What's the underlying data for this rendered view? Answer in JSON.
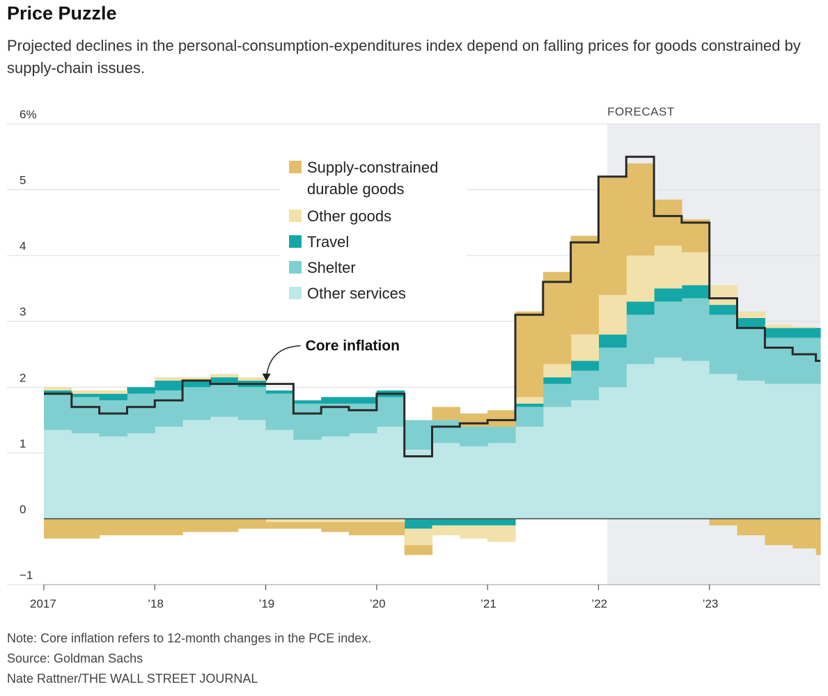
{
  "title": "Price Puzzle",
  "subtitle": "Projected declines in the personal-consumption-expenditures index depend on falling prices for goods constrained by supply-chain issues.",
  "notes": {
    "note": "Note: Core inflation refers to 12-month changes in the PCE index.",
    "source": "Source: Goldman Sachs",
    "credit": "Nate Rattner/THE WALL STREET JOURNAL"
  },
  "colors": {
    "supply": "#e2be6a",
    "other_goods": "#f2e1aa",
    "travel": "#15a7a7",
    "shelter": "#7fcfd0",
    "other_services": "#bee7e7",
    "core_line": "#2a2a2a",
    "forecast_bg": "#ecedf0"
  },
  "chart_data": {
    "type": "area",
    "stacked": true,
    "step": true,
    "title": "",
    "xlabel": "",
    "ylabel": "",
    "ylim": [
      -1,
      6
    ],
    "xlim": [
      2017,
      2024
    ],
    "y_ticks": [
      -1,
      0,
      1,
      2,
      3,
      4,
      5,
      6
    ],
    "y_tick_labels": [
      "−1",
      "0",
      "1",
      "2",
      "3",
      "4",
      "5",
      "6%"
    ],
    "x_ticks": [
      2017,
      2018,
      2019,
      2020,
      2021,
      2022,
      2023
    ],
    "x_tick_labels": [
      "2017",
      "’18",
      "’19",
      "’20",
      "’21",
      "’22",
      "’23"
    ],
    "forecast": {
      "label": "FORECAST",
      "start": 2022.08,
      "end": 2024
    },
    "annotation": {
      "text": "Core inflation",
      "x": 2019.0,
      "y": 2.08
    },
    "legend_position": "top-center",
    "x": [
      2017.0,
      2017.25,
      2017.5,
      2017.75,
      2018.0,
      2018.25,
      2018.5,
      2018.75,
      2019.0,
      2019.25,
      2019.5,
      2019.75,
      2020.0,
      2020.25,
      2020.5,
      2020.75,
      2021.0,
      2021.25,
      2021.5,
      2021.75,
      2022.0,
      2022.25,
      2022.5,
      2022.75,
      2023.0,
      2023.25,
      2023.5,
      2023.75,
      2023.96
    ],
    "series": [
      {
        "name": "Other services",
        "values": [
          1.35,
          1.3,
          1.25,
          1.3,
          1.4,
          1.5,
          1.55,
          1.5,
          1.35,
          1.2,
          1.25,
          1.3,
          1.4,
          1.05,
          1.15,
          1.1,
          1.15,
          1.4,
          1.7,
          1.8,
          2.0,
          2.35,
          2.45,
          2.4,
          2.2,
          2.1,
          2.05,
          2.05,
          2.05
        ]
      },
      {
        "name": "Shelter",
        "values": [
          0.55,
          0.55,
          0.55,
          0.6,
          0.55,
          0.5,
          0.5,
          0.5,
          0.55,
          0.55,
          0.5,
          0.45,
          0.45,
          0.45,
          0.35,
          0.3,
          0.25,
          0.3,
          0.35,
          0.45,
          0.6,
          0.75,
          0.85,
          0.95,
          0.9,
          0.8,
          0.7,
          0.7,
          0.7
        ]
      },
      {
        "name": "Travel",
        "values": [
          0.05,
          0.05,
          0.1,
          0.1,
          0.15,
          0.1,
          0.1,
          0.1,
          0.05,
          0.05,
          0.1,
          0.1,
          0.1,
          -0.15,
          -0.1,
          -0.1,
          -0.1,
          0.05,
          0.1,
          0.15,
          0.2,
          0.2,
          0.2,
          0.2,
          0.15,
          0.15,
          0.15,
          0.15,
          0.15
        ]
      },
      {
        "name": "Other goods",
        "values": [
          0.05,
          0.05,
          0.05,
          0.0,
          0.05,
          0.05,
          0.05,
          0.05,
          -0.05,
          -0.05,
          -0.05,
          -0.05,
          -0.05,
          -0.25,
          -0.15,
          -0.2,
          -0.25,
          0.1,
          0.2,
          0.4,
          0.6,
          0.7,
          0.65,
          0.5,
          0.3,
          0.1,
          0.05,
          0.02,
          0.0
        ]
      },
      {
        "name": "Supply-constrained durable goods",
        "values": [
          -0.3,
          -0.3,
          -0.25,
          -0.25,
          -0.25,
          -0.2,
          -0.2,
          -0.15,
          -0.1,
          -0.1,
          -0.15,
          -0.2,
          -0.2,
          -0.15,
          0.2,
          0.2,
          0.25,
          1.3,
          1.4,
          1.5,
          1.8,
          1.4,
          0.7,
          0.5,
          -0.1,
          -0.25,
          -0.4,
          -0.45,
          -0.55
        ]
      }
    ],
    "core_inflation": {
      "name": "Core inflation",
      "values": [
        1.9,
        1.7,
        1.6,
        1.7,
        1.8,
        2.1,
        2.05,
        2.05,
        2.05,
        1.6,
        1.7,
        1.65,
        1.9,
        0.95,
        1.4,
        1.45,
        1.5,
        3.1,
        3.6,
        4.2,
        5.2,
        5.5,
        4.6,
        4.5,
        3.35,
        2.9,
        2.6,
        2.5,
        2.4
      ]
    }
  }
}
